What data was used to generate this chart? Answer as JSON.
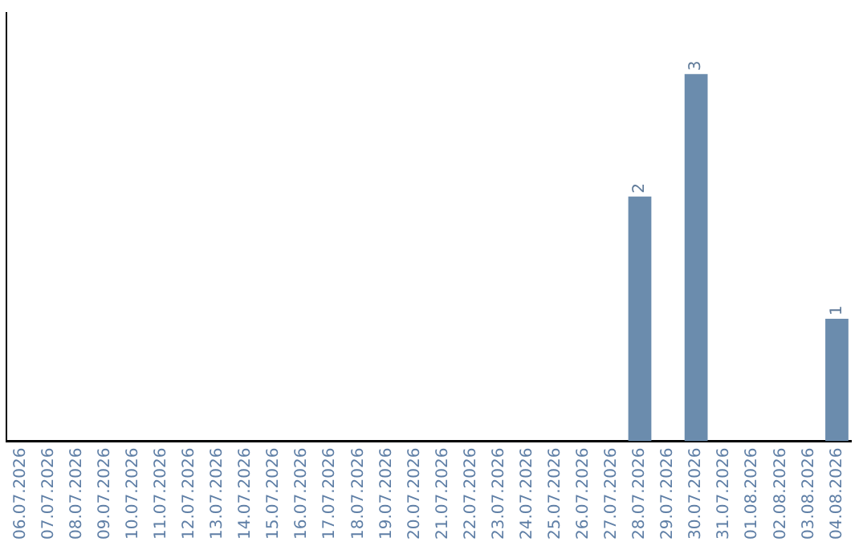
{
  "chart_data": {
    "type": "bar",
    "categories": [
      "06.07.2026",
      "07.07.2026",
      "08.07.2026",
      "09.07.2026",
      "10.07.2026",
      "11.07.2026",
      "12.07.2026",
      "13.07.2026",
      "14.07.2026",
      "15.07.2026",
      "16.07.2026",
      "17.07.2026",
      "18.07.2026",
      "19.07.2026",
      "20.07.2026",
      "21.07.2026",
      "22.07.2026",
      "23.07.2026",
      "24.07.2026",
      "25.07.2026",
      "26.07.2026",
      "27.07.2026",
      "28.07.2026",
      "29.07.2026",
      "30.07.2026",
      "31.07.2026",
      "01.08.2026",
      "02.08.2026",
      "03.08.2026",
      "04.08.2026"
    ],
    "values": [
      null,
      null,
      null,
      null,
      null,
      null,
      null,
      null,
      null,
      null,
      null,
      null,
      null,
      null,
      null,
      null,
      null,
      null,
      null,
      null,
      null,
      null,
      2,
      null,
      3,
      null,
      null,
      null,
      null,
      1
    ],
    "color": "#6b8cad",
    "data_labels": true,
    "tick_labels": "x",
    "grid": false,
    "legend": false
  }
}
